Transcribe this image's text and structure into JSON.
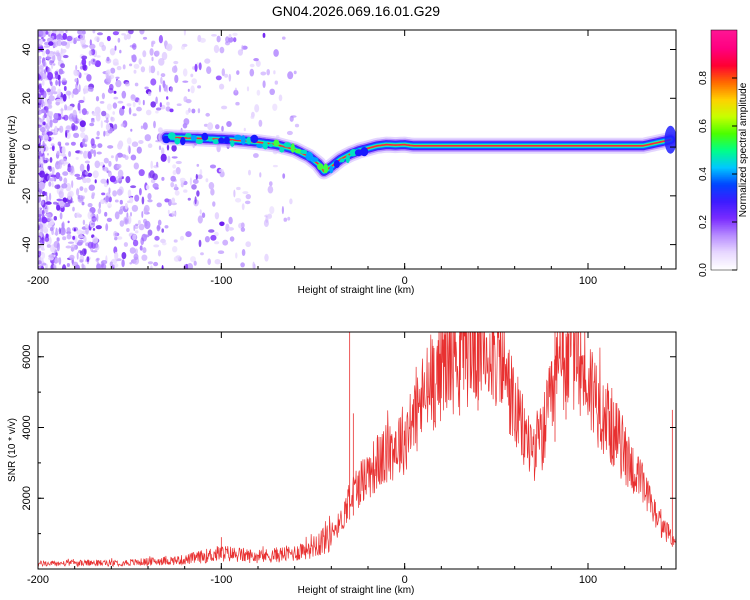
{
  "title": "GN04.2026.069.16.01.G29",
  "chart_data": [
    {
      "type": "heatmap",
      "xlabel": "Height of straight line (km)",
      "ylabel": "Frequency (Hz)",
      "xlim": [
        -200,
        148
      ],
      "ylim": [
        -50,
        48
      ],
      "xticks": [
        "-200",
        "-100",
        "0",
        "100"
      ],
      "xtick_values": [
        -200,
        -100,
        0,
        100
      ],
      "yticks": [
        "40",
        "20",
        "0",
        "-20",
        "-40"
      ],
      "ytick_values": [
        40,
        20,
        0,
        -20,
        -40
      ],
      "colorbar": {
        "label": "Normalized spectral amplitude",
        "range": [
          0,
          1
        ],
        "ticks": [
          "0.0",
          "0.2",
          "0.4",
          "0.6",
          "0.8"
        ],
        "tick_values": [
          0.0,
          0.2,
          0.4,
          0.6,
          0.8
        ],
        "colors": [
          "#ffffff",
          "#e8d8ff",
          "#b78cff",
          "#7a2cff",
          "#3c1cff",
          "#0044ff",
          "#00c8ff",
          "#00ff88",
          "#4cff00",
          "#c8ff00",
          "#ffd000",
          "#ff6a00",
          "#ff0033",
          "#ff0080",
          "#ff1493"
        ]
      },
      "ridge": {
        "x": [
          -130,
          -110,
          -95,
          -80,
          -70,
          -60,
          -52,
          -47,
          -44,
          -40,
          -35,
          -30,
          -25,
          -20,
          -15,
          -10,
          -5,
          0,
          5,
          20,
          60,
          100,
          130,
          145
        ],
        "y": [
          4,
          3.5,
          3,
          2,
          1,
          -1,
          -4,
          -7,
          -10,
          -8,
          -5,
          -3,
          -1.5,
          -0.5,
          0.5,
          1,
          0.8,
          1,
          0.5,
          0.5,
          0.5,
          0.5,
          0.5,
          3
        ]
      }
    },
    {
      "type": "line",
      "xlabel": "Height of straight line (km)",
      "ylabel": "SNR (10 * v/v)",
      "xlim": [
        -200,
        148
      ],
      "ylim": [
        0,
        6700
      ],
      "xticks": [
        "-200",
        "-100",
        "0",
        "100"
      ],
      "xtick_values": [
        -200,
        -100,
        0,
        100
      ],
      "yticks": [
        "6000",
        "4000",
        "2000"
      ],
      "ytick_values": [
        6000,
        4000,
        2000
      ],
      "color": "#e83030",
      "envelope": {
        "x": [
          -200,
          -150,
          -120,
          -100,
          -80,
          -60,
          -45,
          -35,
          -30,
          -25,
          -20,
          -15,
          -10,
          -5,
          0,
          10,
          20,
          30,
          40,
          50,
          55,
          60,
          65,
          70,
          75,
          80,
          85,
          90,
          95,
          100,
          110,
          120,
          130,
          140,
          148
        ],
        "y": [
          150,
          180,
          260,
          450,
          350,
          450,
          800,
          1300,
          2000,
          2400,
          2700,
          3000,
          3200,
          3500,
          3700,
          4800,
          5800,
          6200,
          6400,
          6200,
          5500,
          4500,
          3800,
          3400,
          3700,
          4700,
          5800,
          6200,
          5900,
          5300,
          4300,
          3300,
          2300,
          1200,
          800
        ]
      },
      "spikes": {
        "x": [
          -100,
          -30,
          -28,
          30,
          40,
          82,
          88,
          146
        ],
        "y": [
          900,
          6700,
          4400,
          6600,
          6650,
          6700,
          6650,
          4500
        ]
      }
    }
  ]
}
